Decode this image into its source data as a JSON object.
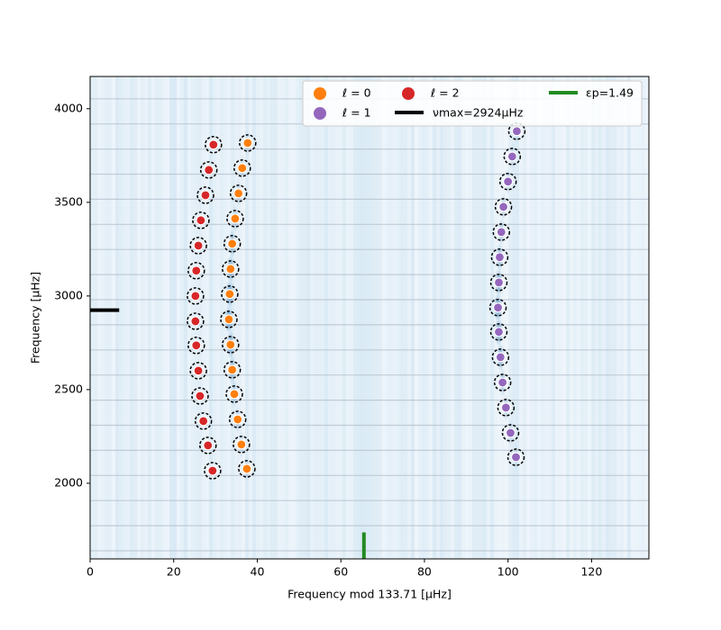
{
  "chart_data": {
    "type": "scatter",
    "xlabel": "Frequency mod 133.71 [μHz]",
    "ylabel": "Frequency [μHz]",
    "xlim": [
      0,
      133.71
    ],
    "xticks": [
      0,
      20,
      40,
      60,
      80,
      100,
      120
    ],
    "ylim": [
      1596,
      4172
    ],
    "yticks": [
      2000,
      2500,
      3000,
      3500,
      4000
    ],
    "series": [
      {
        "name": "ℓ = 0",
        "color": "#ff7f0e",
        "x": [
          37.7,
          36.4,
          35.5,
          34.7,
          34.0,
          33.6,
          33.4,
          33.2,
          33.6,
          34.0,
          34.5,
          35.3,
          36.2,
          37.5
        ],
        "values": [
          3817,
          3683,
          3548,
          3413,
          3279,
          3144,
          3010,
          2875,
          2740,
          2606,
          2476,
          2341,
          2207,
          2077
        ]
      },
      {
        "name": "ℓ = 1",
        "color": "#9467bd",
        "x": [
          102.1,
          101.0,
          100.0,
          98.9,
          98.4,
          98.0,
          97.8,
          97.6,
          97.8,
          98.2,
          98.7,
          99.5,
          100.6,
          101.9
        ],
        "values": [
          3880,
          3745,
          3611,
          3476,
          3341,
          3207,
          3072,
          2938,
          2808,
          2673,
          2538,
          2404,
          2269,
          2139
        ]
      },
      {
        "name": "ℓ = 2",
        "color": "#d62728",
        "x": [
          29.5,
          28.4,
          27.6,
          26.5,
          25.9,
          25.4,
          25.2,
          25.2,
          25.4,
          25.9,
          26.3,
          27.1,
          28.2,
          29.3
        ],
        "values": [
          3808,
          3673,
          3538,
          3404,
          3269,
          3135,
          3000,
          2865,
          2736,
          2601,
          2466,
          2332,
          2202,
          2067
        ]
      }
    ],
    "nu_max": {
      "value": 2924,
      "label": "νmax=2924μHz",
      "color": "#000000"
    },
    "epsilon_p": {
      "value": 1.49,
      "label": "εp=1.49",
      "color": "#228b22"
    }
  }
}
